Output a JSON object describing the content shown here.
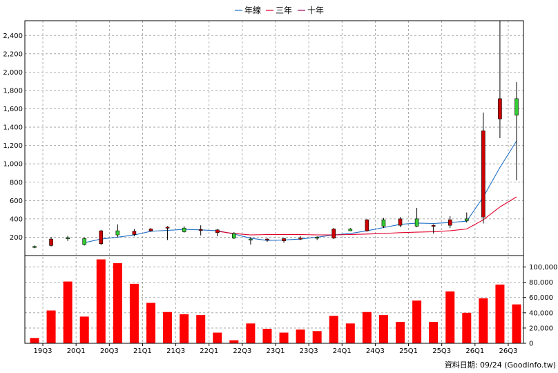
{
  "legend": [
    {
      "label": "年線",
      "color": "#1f6fc5"
    },
    {
      "label": "三年",
      "color": "#e0002a"
    },
    {
      "label": "十年",
      "color": "#a0005a"
    }
  ],
  "footer": "資料日期: 09/24  (Goodinfo.tw)",
  "colors": {
    "up": "#33cc33",
    "down": "#cc0000",
    "volume": "#ff0000",
    "grid": "#9a9a9a"
  },
  "chart_data": [
    {
      "type": "candlestick",
      "title": "",
      "ylim": [
        0,
        2560
      ],
      "yticks": [
        200,
        400,
        600,
        800,
        1000,
        1200,
        1400,
        1600,
        1800,
        2000,
        2200,
        2400
      ],
      "xticks": [
        "19Q3",
        "20Q1",
        "20Q3",
        "21Q1",
        "21Q3",
        "22Q1",
        "22Q3",
        "23Q1",
        "23Q3",
        "24Q1",
        "24Q3",
        "25Q1",
        "25Q3",
        "26Q1",
        "26Q3"
      ],
      "grid": true,
      "legend_position": "top-center",
      "candles": [
        {
          "open": 95,
          "high": 110,
          "low": 80,
          "close": 100
        },
        {
          "open": 180,
          "high": 200,
          "low": 100,
          "close": 110
        },
        {
          "open": 190,
          "high": 215,
          "low": 160,
          "close": 195
        },
        {
          "open": 120,
          "high": 195,
          "low": 110,
          "close": 185
        },
        {
          "open": 270,
          "high": 280,
          "low": 115,
          "close": 130
        },
        {
          "open": 225,
          "high": 340,
          "low": 200,
          "close": 270
        },
        {
          "open": 265,
          "high": 290,
          "low": 210,
          "close": 230
        },
        {
          "open": 290,
          "high": 300,
          "low": 260,
          "close": 270
        },
        {
          "open": 310,
          "high": 320,
          "low": 170,
          "close": 305
        },
        {
          "open": 260,
          "high": 320,
          "low": 250,
          "close": 300
        },
        {
          "open": 285,
          "high": 330,
          "low": 220,
          "close": 280
        },
        {
          "open": 280,
          "high": 290,
          "low": 210,
          "close": 250
        },
        {
          "open": 190,
          "high": 255,
          "low": 180,
          "close": 240
        },
        {
          "open": 175,
          "high": 200,
          "low": 120,
          "close": 180
        },
        {
          "open": 180,
          "high": 190,
          "low": 150,
          "close": 170
        },
        {
          "open": 185,
          "high": 190,
          "low": 140,
          "close": 160
        },
        {
          "open": 190,
          "high": 210,
          "low": 170,
          "close": 180
        },
        {
          "open": 190,
          "high": 210,
          "low": 170,
          "close": 200
        },
        {
          "open": 290,
          "high": 300,
          "low": 180,
          "close": 190
        },
        {
          "open": 270,
          "high": 300,
          "low": 270,
          "close": 290
        },
        {
          "open": 390,
          "high": 400,
          "low": 260,
          "close": 270
        },
        {
          "open": 320,
          "high": 410,
          "low": 300,
          "close": 390
        },
        {
          "open": 400,
          "high": 420,
          "low": 310,
          "close": 330
        },
        {
          "open": 320,
          "high": 520,
          "low": 310,
          "close": 400
        },
        {
          "open": 330,
          "high": 340,
          "low": 240,
          "close": 320
        },
        {
          "open": 390,
          "high": 430,
          "low": 300,
          "close": 330
        },
        {
          "open": 380,
          "high": 470,
          "low": 360,
          "close": 400
        },
        {
          "open": 1360,
          "high": 1560,
          "low": 350,
          "close": 420
        },
        {
          "open": 1710,
          "high": 2560,
          "low": 1280,
          "close": 1490
        },
        {
          "open": 1530,
          "high": 1890,
          "low": 820,
          "close": 1710
        }
      ],
      "series": [
        {
          "name": "年線",
          "values": [
            null,
            null,
            null,
            140,
            180,
            200,
            225,
            265,
            275,
            285,
            280,
            270,
            235,
            190,
            165,
            170,
            180,
            200,
            225,
            240,
            270,
            305,
            340,
            355,
            350,
            360,
            375,
            640,
            960,
            1250
          ]
        },
        {
          "name": "三年",
          "values": [
            null,
            null,
            null,
            null,
            null,
            null,
            null,
            null,
            null,
            null,
            null,
            265,
            240,
            225,
            230,
            230,
            230,
            225,
            225,
            230,
            235,
            240,
            250,
            255,
            260,
            270,
            290,
            390,
            530,
            640
          ]
        },
        {
          "name": "十年",
          "values": [
            null,
            null,
            null,
            null,
            null,
            null,
            null,
            null,
            null,
            null,
            null,
            null,
            null,
            null,
            null,
            null,
            null,
            null,
            null,
            null,
            null,
            null,
            null,
            null,
            null,
            null,
            null,
            null,
            null,
            null
          ]
        }
      ]
    },
    {
      "type": "bar",
      "title": "",
      "ylim": [
        0,
        115000
      ],
      "yticks": [
        "0",
        "20,000",
        "40,000",
        "60,000",
        "80,000",
        "100,000"
      ],
      "values": [
        7000,
        43000,
        81000,
        35000,
        110000,
        105000,
        78000,
        53000,
        41000,
        38000,
        37000,
        14000,
        4000,
        26000,
        19000,
        14000,
        18000,
        16000,
        36000,
        26000,
        41000,
        37000,
        28000,
        56000,
        28000,
        68000,
        40000,
        59000,
        77000,
        51000
      ]
    }
  ]
}
